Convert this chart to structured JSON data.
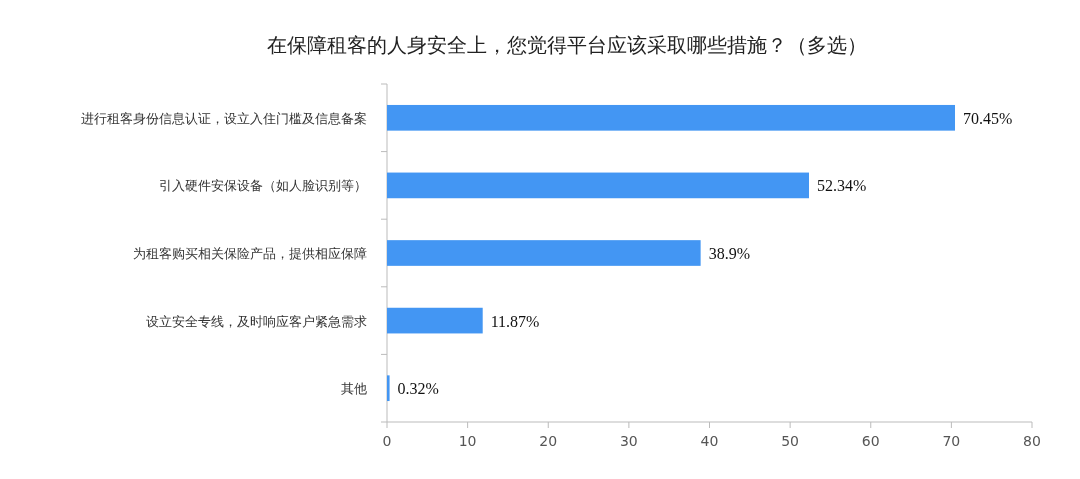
{
  "chart_data": {
    "type": "bar",
    "orientation": "horizontal",
    "title": "在保障租客的人身安全上，您觉得平台应该采取哪些措施？（多选）",
    "categories": [
      "进行租客身份信息认证，设立入住门槛及信息备案",
      "引入硬件安保设备（如人脸识别等）",
      "为租客购买相关保险产品，提供相应保障",
      "设立安全专线，及时响应客户紧急需求",
      "其他"
    ],
    "values": [
      70.45,
      52.34,
      38.9,
      11.87,
      0.32
    ],
    "value_labels": [
      "70.45%",
      "52.34%",
      "38.9%",
      "11.87%",
      "0.32%"
    ],
    "color": "#4396f3",
    "xlim": [
      0,
      80
    ],
    "xticks": [
      0,
      10,
      20,
      30,
      40,
      50,
      60,
      70,
      80
    ],
    "grid": false
  }
}
